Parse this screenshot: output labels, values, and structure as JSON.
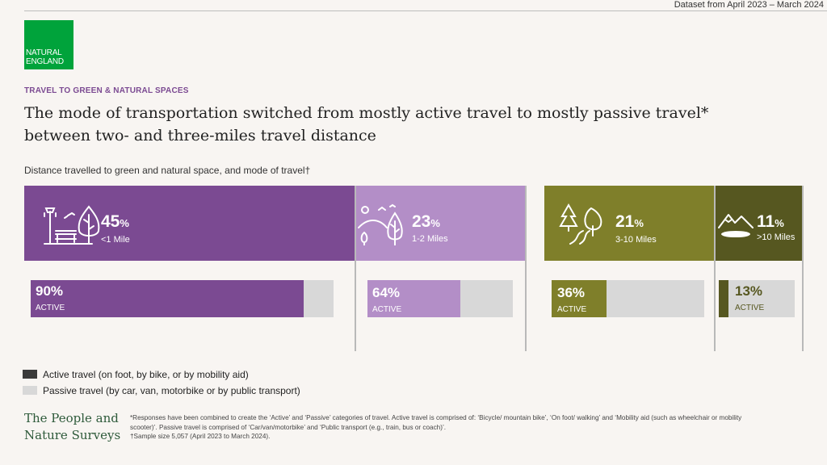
{
  "header": {
    "dataset": "Dataset from April 2023 – March 2024",
    "logo_line1": "NATURAL",
    "logo_line2": "ENGLAND",
    "kicker": "TRAVEL TO GREEN & NATURAL SPACES",
    "headline": "The mode of transportation switched from mostly active travel to mostly passive travel* between two- and three-miles travel distance",
    "subtitle": "Distance travelled to green and natural space, and mode of travel†"
  },
  "colors": {
    "panel_1": "#7b4a92",
    "panel_2": "#b38ec7",
    "panel_3": "#7f7f2a",
    "panel_4": "#565720",
    "passive": "#d8d8d8",
    "active_legend": "#3a3a3a"
  },
  "chart_data": {
    "type": "bar",
    "categories": [
      "<1 Mile",
      "1-2 Miles",
      "3-10 Miles",
      ">10 Miles"
    ],
    "distance_share_percent": [
      45,
      23,
      21,
      11
    ],
    "active_percent": [
      90,
      64,
      36,
      13
    ],
    "icons": [
      "lamppost-bench-tree-icon",
      "birds-hill-trees-icon",
      "forest-path-icon",
      "mountain-lake-icon"
    ],
    "series": [
      {
        "name": "Active travel (on foot, by bike, or by mobility aid)",
        "values": [
          90,
          64,
          36,
          13
        ]
      },
      {
        "name": "Passive travel (by car, van, motorbike or by public transport)",
        "values": [
          10,
          36,
          64,
          87
        ]
      }
    ],
    "percent_symbol": "%",
    "bar_label": "ACTIVE",
    "ylim": [
      0,
      100
    ]
  },
  "panels": [
    {
      "pct": "45",
      "dist": "<1 Mile",
      "active": "90%",
      "label": "ACTIVE"
    },
    {
      "pct": "23",
      "dist": "1-2 Miles",
      "active": "64%",
      "label": "ACTIVE"
    },
    {
      "pct": "21",
      "dist": "3-10 Miles",
      "active": "36%",
      "label": "ACTIVE"
    },
    {
      "pct": "11",
      "dist": ">10 Miles",
      "active": "13%",
      "label": "ACTIVE"
    }
  ],
  "legend": {
    "active": "Active travel (on foot, by bike, or by mobility aid)",
    "passive": "Passive travel (by car, van, motorbike or by public transport)"
  },
  "footer": {
    "brand_line1": "The People and",
    "brand_line2": "Nature Surveys",
    "note1": "*Responses have been combined to create the ‘Active’ and ‘Passive’ categories of travel. Active travel is comprised of: ‘Bicycle/ mountain bike’, ‘On foot/ walking’ and ‘Mobility aid (such as wheelchair or mobility scooter)’. Passive travel is comprised of ‘Car/van/motorbike’ and ‘Public transport (e.g., train, bus or coach)’.",
    "note2": "†Sample size 5,057 (April 2023 to March 2024)."
  }
}
